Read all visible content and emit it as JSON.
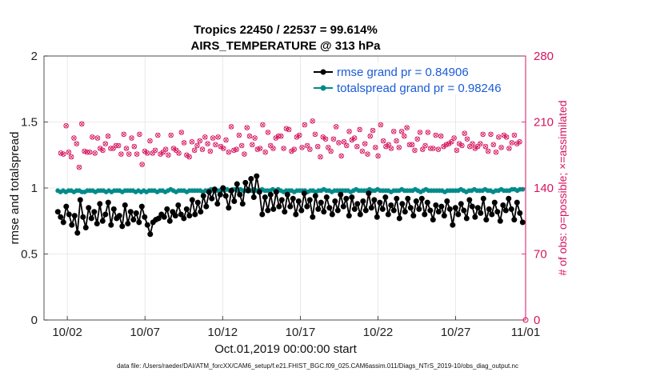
{
  "chart_data": {
    "type": "line",
    "title_line1": "Tropics 22450 / 22537 = 99.614%",
    "title_line2": "AIRS_TEMPERATURE @ 313 hPa",
    "xlabel": "Oct.01,2019 00:00:00 start",
    "ylabel_left": "rmse and totalspread",
    "ylabel_right": "# of obs: o=possible; ×=assimilated",
    "footer": "data file: /Users/raeder/DAI/ATM_forcXX/CAM6_setup/f.e21.FHIST_BGC.f09_025.CAM6assim.011/Diags_NTrS_2019-10/obs_diag_output.nc",
    "xlim": [
      0.5,
      31.5
    ],
    "ylim_left": [
      0,
      2
    ],
    "ylim_right": [
      0,
      280
    ],
    "x_ticks": [
      {
        "value": 2,
        "label": "10/02"
      },
      {
        "value": 7,
        "label": "10/07"
      },
      {
        "value": 12,
        "label": "10/12"
      },
      {
        "value": 17,
        "label": "10/17"
      },
      {
        "value": 22,
        "label": "10/22"
      },
      {
        "value": 27,
        "label": "10/27"
      },
      {
        "value": 32,
        "label": "11/01"
      }
    ],
    "y_ticks_left": [
      {
        "value": 0,
        "label": "0"
      },
      {
        "value": 0.5,
        "label": "0.5"
      },
      {
        "value": 1,
        "label": "1"
      },
      {
        "value": 1.5,
        "label": "1.5"
      },
      {
        "value": 2,
        "label": "2"
      }
    ],
    "y_ticks_right": [
      {
        "value": 0,
        "label": "0"
      },
      {
        "value": 70,
        "label": "70"
      },
      {
        "value": 140,
        "label": "140"
      },
      {
        "value": 210,
        "label": "210"
      },
      {
        "value": 280,
        "label": "280"
      }
    ],
    "legend_position": "top-right",
    "series": [
      {
        "name": "rmse grand pr = 0.84906",
        "color": "#000000",
        "values": [
          0.82,
          0.78,
          0.74,
          0.86,
          0.8,
          0.72,
          0.79,
          0.66,
          0.91,
          0.78,
          0.7,
          0.85,
          0.77,
          0.82,
          0.73,
          0.88,
          0.75,
          0.8,
          0.89,
          0.72,
          0.84,
          0.77,
          0.79,
          0.71,
          0.87,
          0.73,
          0.82,
          0.76,
          0.81,
          0.74,
          0.86,
          0.78,
          0.72,
          0.65,
          0.74,
          0.76,
          0.77,
          0.8,
          0.78,
          0.84,
          0.75,
          0.82,
          0.79,
          0.87,
          0.8,
          0.77,
          0.84,
          0.79,
          0.91,
          0.8,
          0.89,
          0.82,
          0.94,
          0.86,
          0.97,
          0.92,
          0.99,
          0.88,
          0.95,
          1.0,
          0.94,
          0.85,
          0.98,
          0.9,
          1.03,
          0.95,
          0.88,
          1.04,
          0.98,
          1.07,
          0.93,
          1.09,
          0.97,
          0.8,
          0.93,
          0.83,
          0.95,
          0.84,
          0.97,
          0.86,
          0.91,
          0.82,
          0.95,
          0.86,
          0.92,
          0.8,
          0.9,
          0.83,
          0.96,
          0.86,
          0.91,
          0.78,
          0.94,
          0.84,
          0.89,
          0.82,
          0.93,
          0.85,
          0.8,
          0.9,
          0.83,
          0.95,
          0.86,
          0.92,
          0.79,
          0.93,
          0.84,
          0.88,
          0.8,
          0.9,
          0.83,
          0.96,
          0.85,
          0.91,
          0.78,
          0.89,
          0.84,
          0.93,
          0.8,
          0.87,
          0.83,
          0.92,
          0.77,
          0.88,
          0.82,
          0.92,
          0.85,
          0.79,
          0.9,
          0.84,
          0.92,
          0.8,
          0.89,
          0.83,
          0.76,
          0.87,
          0.82,
          0.86,
          0.79,
          0.9,
          0.84,
          0.72,
          0.85,
          0.8,
          0.88,
          0.83,
          0.77,
          0.91,
          0.86,
          0.78,
          0.85,
          0.81,
          0.92,
          0.76,
          0.84,
          0.8,
          0.89,
          0.82,
          0.75,
          0.87,
          0.83,
          0.92,
          0.84,
          0.76,
          0.89,
          0.81,
          0.74
        ]
      },
      {
        "name": "totalspread grand pr = 0.98246",
        "color": "#008b8b",
        "values": [
          0.98,
          0.97,
          0.98,
          0.97,
          0.98,
          0.98,
          0.97,
          0.98,
          0.98,
          0.97,
          0.97,
          0.98,
          0.98,
          0.98,
          0.97,
          0.98,
          0.98,
          0.98,
          0.97,
          0.98,
          0.97,
          0.98,
          0.98,
          0.98,
          0.97,
          0.98,
          0.98,
          0.98,
          0.98,
          0.97,
          0.98,
          0.97,
          0.98,
          0.97,
          0.98,
          0.98,
          0.98,
          0.97,
          0.98,
          0.98,
          0.97,
          0.98,
          0.99,
          0.98,
          0.97,
          0.98,
          0.98,
          0.98,
          0.97,
          0.98,
          0.98,
          0.98,
          0.98,
          0.98,
          0.97,
          0.98,
          0.98,
          0.99,
          0.98,
          0.98,
          0.98,
          0.99,
          0.98,
          0.99,
          0.98,
          0.99,
          0.99,
          0.98,
          0.99,
          0.98,
          0.98,
          0.99,
          0.98,
          0.99,
          0.98,
          0.98,
          0.99,
          0.98,
          0.98,
          0.98,
          0.99,
          0.98,
          0.99,
          0.98,
          0.97,
          0.98,
          0.98,
          0.98,
          0.97,
          0.98,
          0.98,
          0.98,
          0.98,
          0.97,
          0.98,
          0.98,
          0.97,
          0.98,
          0.98,
          0.99,
          0.98,
          0.98,
          0.97,
          0.98,
          0.98,
          0.98,
          0.98,
          0.98,
          0.98,
          0.97,
          0.98,
          0.99,
          0.98,
          0.98,
          0.98,
          0.98,
          0.99,
          0.98,
          0.98,
          0.99,
          0.98,
          0.98,
          0.98,
          0.98,
          0.97,
          0.98,
          0.98,
          0.98,
          0.99,
          0.98,
          0.98,
          0.98,
          0.98,
          0.99,
          0.98,
          0.97,
          0.98,
          0.99,
          0.98,
          0.98,
          0.98,
          0.98,
          0.98,
          0.98,
          0.97,
          0.98,
          0.98,
          0.98,
          0.98,
          0.98,
          0.99,
          0.98,
          0.97,
          0.98,
          0.98,
          0.99,
          0.98,
          0.98,
          0.98,
          0.99,
          0.98,
          0.98,
          0.97,
          0.98,
          0.98,
          0.99,
          0.98,
          0.98,
          0.98,
          0.99,
          0.99,
          0.98,
          0.99,
          0.99
        ]
      }
    ],
    "obs_series": {
      "name": "# of obs",
      "axis": "right",
      "color": "#d6155f",
      "values": [
        177,
        176,
        206,
        178,
        173,
        193,
        187,
        162,
        208,
        179,
        178,
        178,
        194,
        177,
        193,
        182,
        180,
        187,
        195,
        182,
        182,
        185,
        185,
        176,
        197,
        182,
        176,
        193,
        184,
        176,
        197,
        165,
        179,
        177,
        190,
        177,
        180,
        196,
        176,
        178,
        181,
        175,
        196,
        182,
        180,
        177,
        199,
        188,
        175,
        173,
        189,
        180,
        185,
        190,
        181,
        194,
        187,
        179,
        193,
        186,
        194,
        184,
        182,
        191,
        178,
        205,
        180,
        181,
        196,
        185,
        176,
        204,
        195,
        186,
        193,
        181,
        182,
        207,
        178,
        199,
        185,
        182,
        193,
        195,
        195,
        182,
        203,
        202,
        179,
        181,
        194,
        196,
        183,
        207,
        185,
        181,
        211,
        197,
        184,
        173,
        194,
        192,
        183,
        179,
        192,
        205,
        188,
        174,
        189,
        185,
        200,
        191,
        193,
        184,
        202,
        179,
        187,
        176,
        195,
        201,
        183,
        174,
        207,
        190,
        184,
        186,
        182,
        200,
        190,
        183,
        200,
        195,
        204,
        186,
        186,
        180,
        192,
        199,
        181,
        185,
        199,
        182,
        182,
        196,
        181,
        195,
        184,
        186,
        187,
        189,
        193,
        180,
        187,
        185,
        198,
        192,
        184,
        187,
        182,
        184,
        187,
        197,
        184,
        179,
        197,
        186,
        178,
        194,
        183,
        196,
        194,
        182,
        188,
        196,
        187,
        189
      ]
    }
  }
}
